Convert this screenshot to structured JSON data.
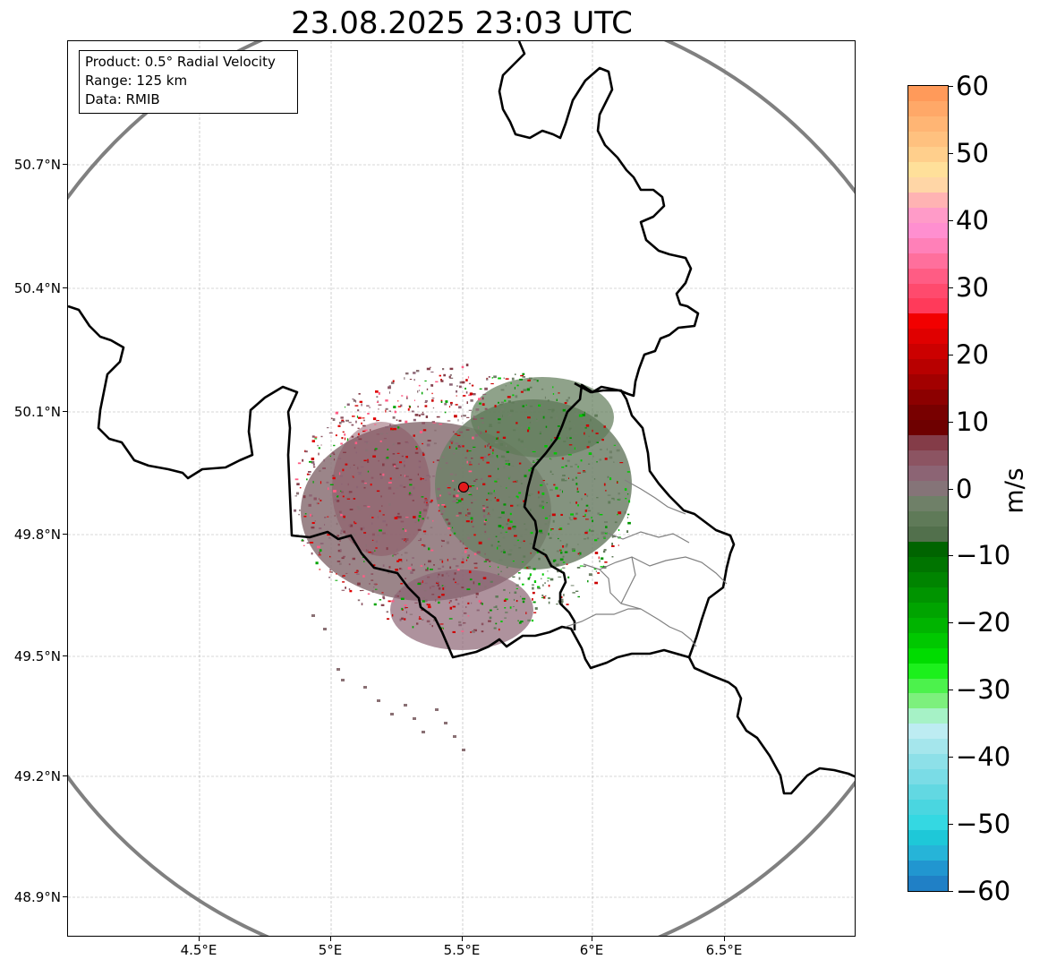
{
  "title": "23.08.2025 23:03 UTC",
  "info_box": {
    "product": "Product: 0.5° Radial Velocity",
    "range": "Range: 125 km",
    "data": "Data: RMIB"
  },
  "lat_ticks": [
    "50.7°N",
    "50.4°N",
    "50.1°N",
    "49.8°N",
    "49.5°N",
    "49.2°N",
    "48.9°N"
  ],
  "lon_ticks": [
    "4.5°E",
    "5°E",
    "5.5°E",
    "6°E",
    "6.5°E"
  ],
  "colorbar": {
    "label": "m/s",
    "min": -60,
    "max": 60,
    "tick_labels": [
      "60",
      "50",
      "40",
      "30",
      "20",
      "10",
      "0",
      "−10",
      "−20",
      "−30",
      "−40",
      "−50",
      "−60"
    ],
    "colors_top_to_bottom": [
      "#ff9a5a",
      "#ffa868",
      "#ffb574",
      "#ffc17f",
      "#ffcf8c",
      "#ffe09a",
      "#ffd6a6",
      "#ffb3b3",
      "#ff9bc8",
      "#ff8fd0",
      "#ff80b8",
      "#ff6f9c",
      "#ff5c84",
      "#ff4a6d",
      "#ff3a5a",
      "#f20000",
      "#e00000",
      "#cc0000",
      "#b80000",
      "#a20000",
      "#8c0000",
      "#780000",
      "#6e0000",
      "#843c48",
      "#8c5462",
      "#8c6474",
      "#857478",
      "#6f8068",
      "#5f7a58",
      "#52704c",
      "#006400",
      "#007400",
      "#008400",
      "#009400",
      "#00a400",
      "#00b400",
      "#00c800",
      "#00dc00",
      "#1cf01c",
      "#4cf24c",
      "#7df07d",
      "#a6f2c6",
      "#bdecf2",
      "#a5e6ec",
      "#8de0e8",
      "#7adce6",
      "#62d8e2",
      "#4ad6e0",
      "#34d8e2",
      "#1ec8d8",
      "#26b4d8",
      "#2196d0",
      "#2080c6"
    ]
  },
  "colors": {
    "range_ring": "#808080",
    "country_border": "#000000",
    "province_border": "#808080",
    "radar_site": "#e31a1c",
    "gridline": "#b0b0b0"
  },
  "legend_icons": {
    "radar_site": "radar-site-marker"
  }
}
